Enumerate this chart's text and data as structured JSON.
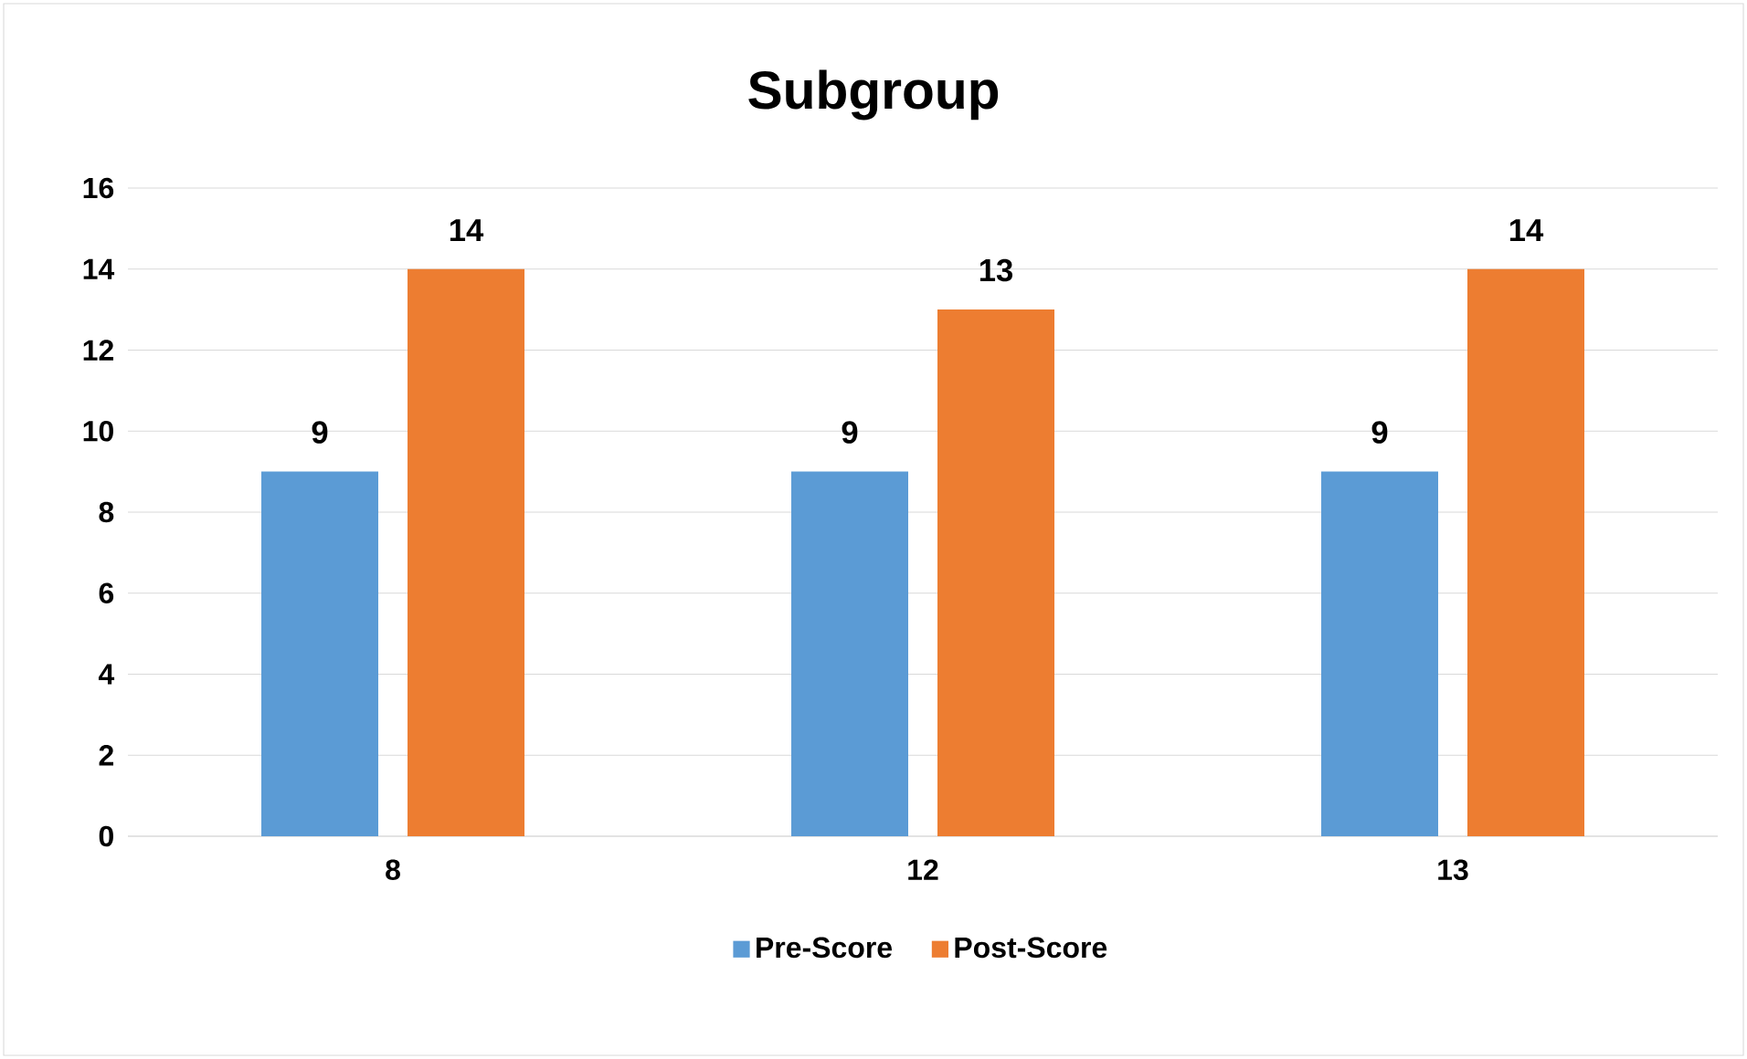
{
  "chart_data": {
    "type": "bar",
    "title": "Subgroup",
    "categories": [
      "8",
      "12",
      "13"
    ],
    "series": [
      {
        "name": "Pre-Score",
        "color": "#5b9bd5",
        "values": [
          9,
          9,
          9
        ]
      },
      {
        "name": "Post-Score",
        "color": "#ed7d31",
        "values": [
          14,
          13,
          14
        ]
      }
    ],
    "ylim": [
      0,
      16
    ],
    "yticks": [
      0,
      2,
      4,
      6,
      8,
      10,
      12,
      14,
      16
    ],
    "grid": "y",
    "legend": "bottom",
    "data_labels": true
  }
}
